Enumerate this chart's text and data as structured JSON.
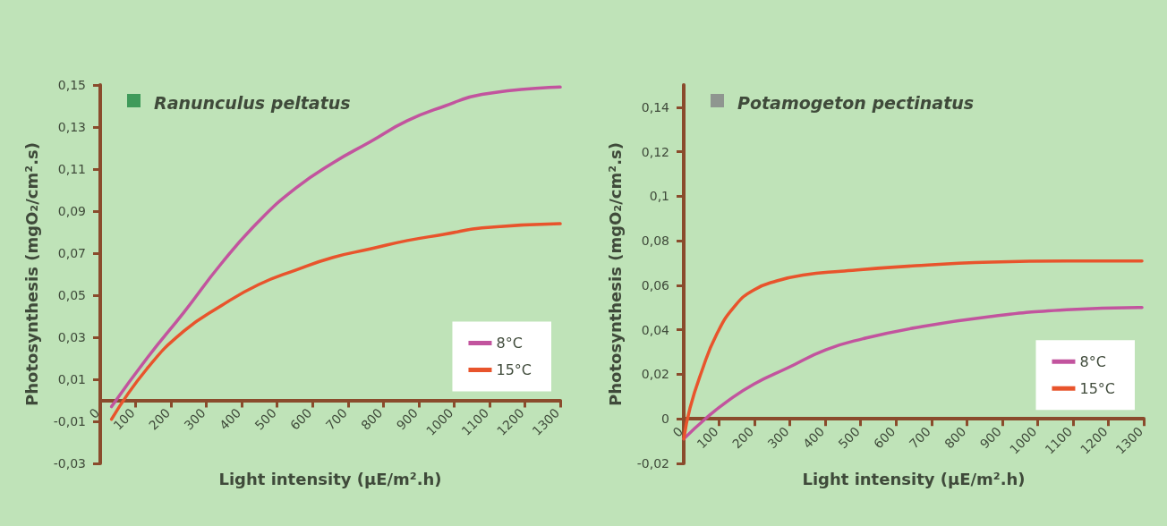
{
  "chart_data": [
    {
      "type": "line",
      "title": "Ranunculus peltatus",
      "xlabel": "Light intensity (µE/m².h)",
      "ylabel": "Photosynthesis (mgO₂/cm².s)",
      "xlim": [
        0,
        1300
      ],
      "xticks": [
        0,
        100,
        200,
        300,
        400,
        500,
        600,
        700,
        800,
        900,
        1000,
        1100,
        1200,
        1300
      ],
      "ylim": [
        -0.03,
        0.15
      ],
      "yticks": [
        {
          "value": -0.03,
          "label": "-0,03"
        },
        {
          "value": -0.01,
          "label": "-0,01"
        },
        {
          "value": 0.01,
          "label": "0,01"
        },
        {
          "value": 0.03,
          "label": "0,03"
        },
        {
          "value": 0.05,
          "label": "0,05"
        },
        {
          "value": 0.07,
          "label": "0,07"
        },
        {
          "value": 0.09,
          "label": "0,09"
        },
        {
          "value": 0.11,
          "label": "0,11"
        },
        {
          "value": 0.13,
          "label": "0,13"
        },
        {
          "value": 0.15,
          "label": "0,15"
        }
      ],
      "legend": "bottom right",
      "marker": "none",
      "series": [
        {
          "name": "8°C",
          "color": "#c2549e",
          "x": [
            32,
            132,
            237,
            342,
            447,
            553,
            658,
            763,
            868,
            974,
            1079,
            1300
          ],
          "values": [
            -0.003,
            0.02,
            0.042,
            0.065,
            0.085,
            0.101,
            0.113,
            0.123,
            0.133,
            0.14,
            0.1455,
            0.149
          ]
        },
        {
          "name": "15°C",
          "color": "#e8542c",
          "x": [
            32,
            132,
            237,
            342,
            447,
            553,
            658,
            763,
            868,
            974,
            1079,
            1300
          ],
          "values": [
            -0.009,
            0.015,
            0.033,
            0.045,
            0.055,
            0.062,
            0.068,
            0.072,
            0.076,
            0.079,
            0.082,
            0.084
          ]
        }
      ]
    },
    {
      "type": "line",
      "title": "Potamogeton pectinatus",
      "xlabel": "Light intensity (µE/m².h)",
      "ylabel": "Photosynthesis (mgO₂/cm².s)",
      "xlim": [
        0,
        1300
      ],
      "xticks": [
        0,
        100,
        200,
        300,
        400,
        500,
        600,
        700,
        800,
        900,
        1000,
        1100,
        1200,
        1300
      ],
      "ylim": [
        -0.02,
        0.15
      ],
      "yticks": [
        {
          "value": -0.02,
          "label": "-0,02"
        },
        0,
        {
          "value": 0.02,
          "label": "0,02"
        },
        {
          "value": 0.04,
          "label": "0,04"
        },
        {
          "value": 0.06,
          "label": "0,06"
        },
        {
          "value": 0.08,
          "label": "0,08"
        },
        {
          "value": 0.1,
          "label": "0,1"
        },
        {
          "value": 0.12,
          "label": "0,12"
        },
        {
          "value": 0.14,
          "label": "0,14"
        }
      ],
      "legend": "bottom right",
      "marker": "none",
      "series": [
        {
          "name": "8°C",
          "color": "#c2549e",
          "x": [
            0,
            61,
            124,
            199,
            295,
            401,
            507,
            656,
            869,
            1082,
            1295
          ],
          "values": [
            -0.009,
            0.0,
            0.008,
            0.0157,
            0.023,
            0.031,
            0.036,
            0.041,
            0.046,
            0.049,
            0.05
          ]
        },
        {
          "name": "15°C",
          "color": "#e8542c",
          "x": [
            0,
            18,
            50,
            93,
            146,
            199,
            263,
            337,
            444,
            656,
            869,
            1082,
            1295
          ],
          "values": [
            -0.009,
            0.005,
            0.021,
            0.038,
            0.051,
            0.058,
            0.062,
            0.0646,
            0.0663,
            0.0688,
            0.0704,
            0.0709,
            0.0709
          ]
        }
      ]
    }
  ]
}
